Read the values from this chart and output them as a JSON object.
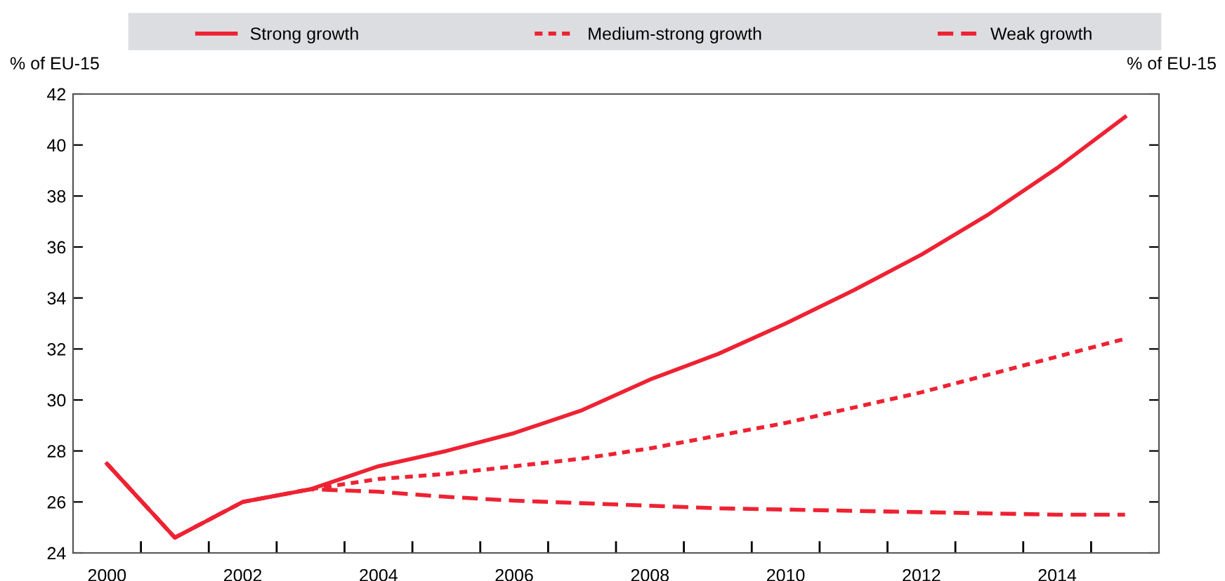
{
  "chart_data": {
    "type": "line",
    "ylabel": "% of EU-15",
    "y2label": "% of EU-15",
    "x": [
      2000,
      2001,
      2002,
      2003,
      2004,
      2005,
      2006,
      2007,
      2008,
      2009,
      2010,
      2011,
      2012,
      2013,
      2014,
      2015
    ],
    "series": [
      {
        "name": "Strong growth",
        "color": "#ee2233",
        "line_style": "solid",
        "values": [
          27.5,
          24.6,
          26.0,
          26.5,
          27.4,
          28.0,
          28.7,
          29.6,
          30.8,
          31.8,
          33.0,
          34.3,
          35.7,
          37.3,
          39.1,
          41.1
        ]
      },
      {
        "name": "Medium-strong growth",
        "color": "#ee2233",
        "line_style": "dotted",
        "values": [
          27.5,
          24.6,
          26.0,
          26.5,
          26.9,
          27.1,
          27.4,
          27.7,
          28.1,
          28.6,
          29.1,
          29.7,
          30.3,
          31.0,
          31.7,
          32.4
        ]
      },
      {
        "name": "Weak growth",
        "color": "#ee2233",
        "line_style": "dashed",
        "values": [
          27.5,
          24.6,
          26.0,
          26.5,
          26.4,
          26.2,
          26.05,
          25.95,
          25.85,
          25.75,
          25.7,
          25.65,
          25.6,
          25.55,
          25.5,
          25.5
        ]
      }
    ],
    "xlim": [
      1999.5,
      2015.5
    ],
    "xticks": [
      2000,
      2002,
      2004,
      2006,
      2008,
      2010,
      2012,
      2014,
      {
        "value": 2000.5,
        "label": null
      },
      {
        "value": 2001.5,
        "label": null
      },
      {
        "value": 2002.5,
        "label": null
      },
      {
        "value": 2003.5,
        "label": null
      },
      {
        "value": 2004.5,
        "label": null
      },
      {
        "value": 2005.5,
        "label": null
      },
      {
        "value": 2006.5,
        "label": null
      },
      {
        "value": 2007.5,
        "label": null
      },
      {
        "value": 2008.5,
        "label": null
      },
      {
        "value": 2009.5,
        "label": null
      },
      {
        "value": 2010.5,
        "label": null
      },
      {
        "value": 2011.5,
        "label": null
      },
      {
        "value": 2012.5,
        "label": null
      },
      {
        "value": 2013.5,
        "label": null
      },
      {
        "value": 2014.5,
        "label": null
      }
    ],
    "ylim": [
      24,
      42
    ],
    "yticks": [
      24,
      26,
      28,
      30,
      32,
      34,
      36,
      38,
      40,
      42
    ],
    "grid": false,
    "legend": "top",
    "marker": "none"
  }
}
